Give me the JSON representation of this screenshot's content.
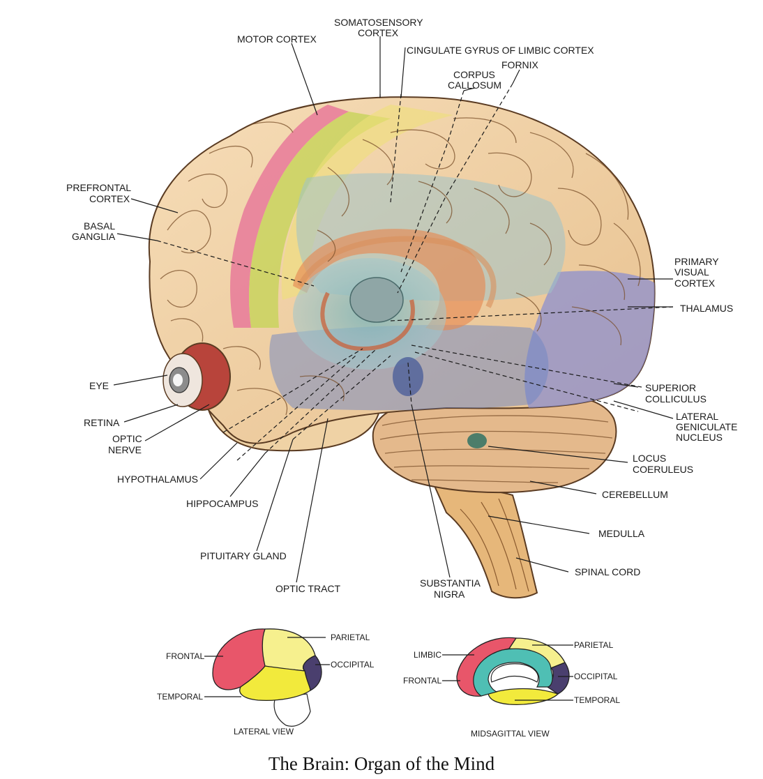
{
  "caption": "The Brain: Organ of the Mind",
  "main_diagram": {
    "labels": {
      "motor_cortex": "MOTOR CORTEX",
      "somatosensory_1": "SOMATOSENSORY",
      "somatosensory_2": "CORTEX",
      "cingulate": "CINGULATE GYRUS OF LIMBIC CORTEX",
      "corpus_1": "CORPUS",
      "corpus_2": "CALLOSUM",
      "fornix": "FORNIX",
      "prefrontal_1": "PREFRONTAL",
      "prefrontal_2": "CORTEX",
      "basal_1": "BASAL",
      "basal_2": "GANGLIA",
      "primary_visual_1": "PRIMARY",
      "primary_visual_2": "VISUAL",
      "primary_visual_3": "CORTEX",
      "thalamus": "THALAMUS",
      "eye": "EYE",
      "superior_1": "SUPERIOR",
      "superior_2": "COLLICULUS",
      "lateral_1": "LATERAL",
      "lateral_2": "GENICULATE",
      "lateral_3": "NUCLEUS",
      "retina": "RETINA",
      "optic_nerve_1": "OPTIC",
      "optic_nerve_2": "NERVE",
      "locus_1": "LOCUS",
      "locus_2": "COERULEUS",
      "hypothalamus": "HYPOTHALAMUS",
      "cerebellum": "CEREBELLUM",
      "hippocampus": "HIPPOCAMPUS",
      "medulla": "MEDULLA",
      "pituitary": "PITUITARY GLAND",
      "spinal_cord": "SPINAL CORD",
      "optic_tract": "OPTIC TRACT",
      "substantia_1": "SUBSTANTIA",
      "substantia_2": "NIGRA"
    }
  },
  "lateral_view": {
    "title": "LATERAL VIEW",
    "frontal": "FRONTAL",
    "parietal": "PARIETAL",
    "occipital": "OCCIPITAL",
    "temporal": "TEMPORAL"
  },
  "midsagittal_view": {
    "title": "MIDSAGITTAL VIEW",
    "limbic": "LIMBIC",
    "frontal": "FRONTAL",
    "parietal": "PARIETAL",
    "occipital": "OCCIPITAL",
    "temporal": "TEMPORAL"
  },
  "colors": {
    "frontal": "#e8566a",
    "parietal": "#f6f08e",
    "occipital": "#4a3f6e",
    "temporal": "#f2ea3c",
    "limbic": "#4fbfb4",
    "cortex_base": "#f2d3a8",
    "motor": "#e87a9a",
    "somatosensory": "#d8dc6a",
    "visual": "#8c8fcf",
    "inner": "#8fbfc0"
  }
}
